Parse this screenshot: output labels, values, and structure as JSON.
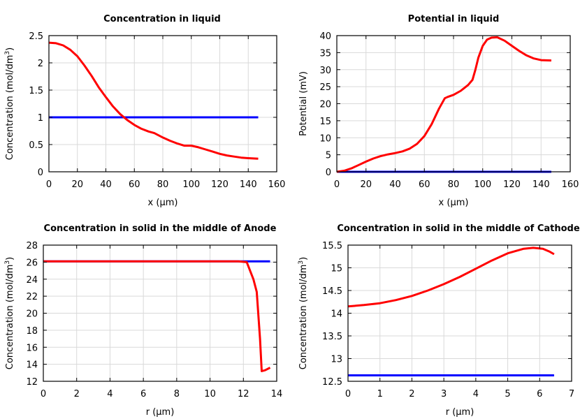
{
  "chart_data": [
    {
      "type": "line",
      "title": "Concentration in liquid",
      "xlabel": "x (µm)",
      "ylabel": "Concentration (mol/dm3)",
      "ylabel_main": "Concentration (mol/dm",
      "ylabel_sup": "3",
      "ylabel_end": ")",
      "xlim": [
        0,
        160
      ],
      "ylim": [
        0,
        2.5
      ],
      "xticks": [
        0,
        20,
        40,
        60,
        80,
        100,
        120,
        140,
        160
      ],
      "yticks": [
        0,
        0.5,
        1,
        1.5,
        2,
        2.5
      ],
      "grid": true,
      "series": [
        {
          "color": "#0000ff",
          "x": [
            0,
            147
          ],
          "y": [
            1.0,
            1.0
          ]
        },
        {
          "color": "#ff0000",
          "x": [
            0,
            5,
            10,
            15,
            20,
            25,
            30,
            35,
            40,
            45,
            50,
            55,
            60,
            65,
            70,
            74,
            80,
            85,
            90,
            95,
            100,
            105,
            110,
            115,
            120,
            125,
            130,
            135,
            140,
            147
          ],
          "y": [
            2.37,
            2.36,
            2.32,
            2.24,
            2.12,
            1.95,
            1.76,
            1.55,
            1.37,
            1.2,
            1.06,
            0.95,
            0.86,
            0.79,
            0.74,
            0.71,
            0.63,
            0.57,
            0.52,
            0.48,
            0.48,
            0.45,
            0.41,
            0.37,
            0.33,
            0.3,
            0.28,
            0.26,
            0.25,
            0.24
          ]
        }
      ]
    },
    {
      "type": "line",
      "title": "Potential in liquid",
      "xlabel": "x (µm)",
      "ylabel": "Potential (mV)",
      "xlim": [
        0,
        160
      ],
      "ylim": [
        0,
        40
      ],
      "xticks": [
        0,
        20,
        40,
        60,
        80,
        100,
        120,
        140,
        160
      ],
      "yticks": [
        0,
        5,
        10,
        15,
        20,
        25,
        30,
        35,
        40
      ],
      "grid": true,
      "series": [
        {
          "color": "#0000ff",
          "x": [
            0,
            147
          ],
          "y": [
            0,
            0
          ]
        },
        {
          "color": "#ff0000",
          "x": [
            0,
            5,
            10,
            15,
            20,
            25,
            30,
            35,
            40,
            45,
            50,
            55,
            60,
            65,
            70,
            74,
            76,
            80,
            85,
            90,
            93,
            95,
            97,
            100,
            103,
            106,
            110,
            115,
            120,
            125,
            130,
            135,
            140,
            147
          ],
          "y": [
            0,
            0.3,
            1.0,
            2.0,
            3.0,
            3.9,
            4.6,
            5.1,
            5.5,
            6.0,
            6.8,
            8.2,
            10.5,
            14.0,
            18.5,
            21.6,
            22.0,
            22.6,
            23.8,
            25.5,
            27.0,
            30.0,
            33.5,
            37.0,
            38.8,
            39.4,
            39.5,
            38.5,
            37.0,
            35.5,
            34.2,
            33.3,
            32.8,
            32.7
          ]
        }
      ]
    },
    {
      "type": "line",
      "title": "Concentration in solid in the middle of Anode",
      "xlabel": "r (µm)",
      "ylabel": "Concentration (mol/dm3)",
      "ylabel_main": "Concentration (mol/dm",
      "ylabel_sup": "3",
      "ylabel_end": ")",
      "xlim": [
        0,
        14
      ],
      "ylim": [
        12,
        28
      ],
      "xticks": [
        0,
        2,
        4,
        6,
        8,
        10,
        12,
        14
      ],
      "yticks": [
        12,
        14,
        16,
        18,
        20,
        22,
        24,
        26,
        28
      ],
      "grid": true,
      "series": [
        {
          "color": "#0000ff",
          "x": [
            0,
            13.6
          ],
          "y": [
            26.1,
            26.1
          ]
        },
        {
          "color": "#ff0000",
          "x": [
            0,
            2,
            4,
            6,
            8,
            10,
            11.7,
            12.2,
            12.6,
            12.8,
            13.0,
            13.1,
            13.3,
            13.6
          ],
          "y": [
            26.1,
            26.1,
            26.1,
            26.1,
            26.1,
            26.1,
            26.1,
            26.0,
            24.0,
            22.5,
            17.0,
            13.2,
            13.3,
            13.6
          ]
        }
      ]
    },
    {
      "type": "line",
      "title": "Concentration in solid in the middle of Cathode",
      "xlabel": "r (µm)",
      "ylabel": "Concentration (mol/dm3)",
      "ylabel_main": "Concentration (mol/dm",
      "ylabel_sup": "3",
      "ylabel_end": ")",
      "xlim": [
        0,
        7
      ],
      "ylim": [
        12.5,
        15.5
      ],
      "xticks": [
        0,
        1,
        2,
        3,
        4,
        5,
        6,
        7
      ],
      "yticks": [
        12.5,
        13,
        13.5,
        14,
        14.5,
        15,
        15.5
      ],
      "grid": true,
      "series": [
        {
          "color": "#0000ff",
          "x": [
            0,
            6.45
          ],
          "y": [
            12.63,
            12.63
          ]
        },
        {
          "color": "#ff0000",
          "x": [
            0,
            0.5,
            1,
            1.5,
            2,
            2.5,
            3,
            3.5,
            4,
            4.5,
            5,
            5.5,
            5.8,
            6.1,
            6.3,
            6.45
          ],
          "y": [
            14.15,
            14.18,
            14.22,
            14.29,
            14.38,
            14.5,
            14.64,
            14.8,
            14.98,
            15.16,
            15.32,
            15.42,
            15.44,
            15.42,
            15.36,
            15.3
          ]
        }
      ]
    }
  ]
}
